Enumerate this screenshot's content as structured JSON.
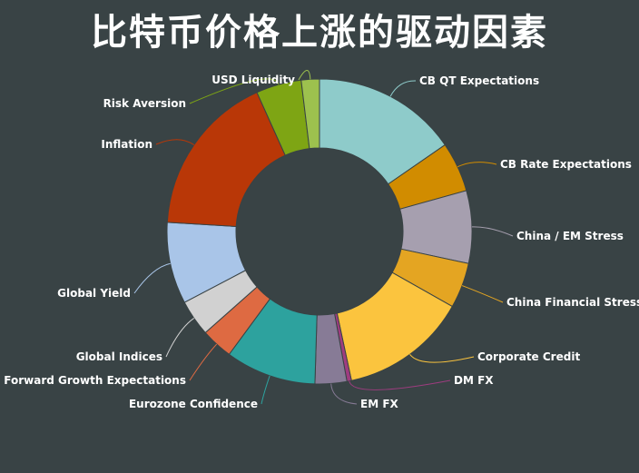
{
  "title": "比特币价格上涨的驱动因素",
  "chart_data": {
    "type": "pie",
    "donut": true,
    "title": "比特币价格上涨的驱动因素",
    "slices": [
      {
        "label": "CB QT Expectations",
        "value": 16,
        "color": "#8ecbca"
      },
      {
        "label": "CB Rate Expectations",
        "value": 5.5,
        "color": "#d18c00"
      },
      {
        "label": "China / EM Stress",
        "value": 8,
        "color": "#a69faf"
      },
      {
        "label": "China Financial Stress",
        "value": 5,
        "color": "#e4a522"
      },
      {
        "label": "Corporate Credit",
        "value": 14,
        "color": "#fbc43e"
      },
      {
        "label": "DM FX",
        "value": 0.5,
        "color": "#9f3c80"
      },
      {
        "label": "EM FX",
        "value": 3.5,
        "color": "#877b96"
      },
      {
        "label": "Eurozone Confidence",
        "value": 10,
        "color": "#2da29e"
      },
      {
        "label": "Forward Growth Expectations",
        "value": 3.5,
        "color": "#de6a42"
      },
      {
        "label": "Global Indices",
        "value": 4,
        "color": "#d1d1d1"
      },
      {
        "label": "Global Yield",
        "value": 9,
        "color": "#a9c5e8"
      },
      {
        "label": "Inflation",
        "value": 18,
        "color": "#b93707"
      },
      {
        "label": "Risk Aversion",
        "value": 5,
        "color": "#7ea514"
      },
      {
        "label": "USD Liquidity",
        "value": 2,
        "color": "#9dc14e"
      }
    ]
  }
}
